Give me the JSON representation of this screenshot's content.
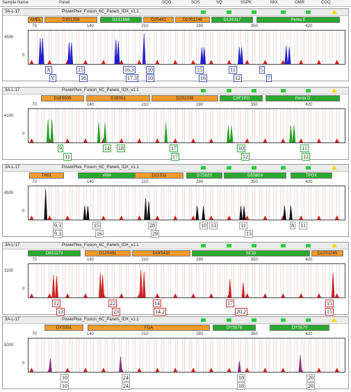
{
  "header": {
    "sample_name": "Sample Name",
    "panel": "Panel",
    "cols": [
      "SQO",
      "SOS",
      "SQ",
      "SSPK",
      "MIX",
      "OMR",
      "CGQ"
    ]
  },
  "panels": [
    {
      "sample": "3A-L-17",
      "panel_name": "PowerPlex_Fusion_6C_Panels_IDX_v1.1",
      "ymax": 4500,
      "ytick": "4500",
      "color": "#2222cc",
      "loci": [
        {
          "name": "AMEL",
          "c": "orange"
        },
        {
          "name": "D3S1358",
          "c": "orange"
        },
        {
          "name": "D1S1656",
          "c": "green"
        },
        {
          "name": "D2S441",
          "c": "orange"
        },
        {
          "name": "D10S1248",
          "c": "orange"
        },
        {
          "name": "D13S317",
          "c": "green"
        },
        {
          "name": "Penta E",
          "c": "green"
        }
      ],
      "alleles_top": [
        "X",
        "15",
        "16.3",
        "10",
        "15",
        "11",
        "5"
      ],
      "alleles_bot": [
        "Y",
        "16",
        "17.3",
        "10",
        "16",
        "12",
        "7"
      ],
      "peaks": [
        {
          "bp": 75,
          "h": 0.85
        },
        {
          "bp": 78,
          "h": 0.85
        },
        {
          "bp": 112,
          "h": 0.7
        },
        {
          "bp": 115,
          "h": 0.7
        },
        {
          "bp": 172,
          "h": 0.8
        },
        {
          "bp": 175,
          "h": 0.75
        },
        {
          "bp": 208,
          "h": 1.0
        },
        {
          "bp": 282,
          "h": 0.55
        },
        {
          "bp": 285,
          "h": 0.55
        },
        {
          "bp": 330,
          "h": 0.55
        },
        {
          "bp": 333,
          "h": 0.55
        },
        {
          "bp": 390,
          "h": 0.6
        },
        {
          "bp": 394,
          "h": 0.55
        }
      ]
    },
    {
      "sample": "3A-L-17",
      "panel_name": "PowerPlex_Fusion_6C_Panels_IDX_v1.1",
      "ymax": 4100,
      "ytick": "4100",
      "color": "#22a022",
      "loci": [
        {
          "name": "D16S539",
          "c": "orange"
        },
        {
          "name": "D18S51",
          "c": "orange"
        },
        {
          "name": "D2S1338",
          "c": "orange"
        },
        {
          "name": "CSF1PO",
          "c": "green"
        },
        {
          "name": "Penta D",
          "c": "green"
        }
      ],
      "alleles_top": [
        "9",
        "14",
        "18",
        "17",
        "10",
        "11"
      ],
      "alleles_bot": [
        "11",
        "17",
        "12",
        "12"
      ],
      "peaks": [
        {
          "bp": 85,
          "h": 0.75
        },
        {
          "bp": 90,
          "h": 0.75
        },
        {
          "bp": 150,
          "h": 0.65
        },
        {
          "bp": 158,
          "h": 0.65
        },
        {
          "bp": 236,
          "h": 0.65
        },
        {
          "bp": 316,
          "h": 0.55
        },
        {
          "bp": 320,
          "h": 0.55
        },
        {
          "bp": 396,
          "h": 0.55
        },
        {
          "bp": 400,
          "h": 0.55
        }
      ]
    },
    {
      "sample": "3A-L-17",
      "panel_name": "PowerPlex_Fusion_6C_Panels_IDX_v1.1",
      "ymax": 4500,
      "ytick": "4500",
      "color": "#111111",
      "loci": [
        {
          "name": "TH01",
          "c": "orange"
        },
        {
          "name": "vWA",
          "c": "green"
        },
        {
          "name": "D21S11",
          "c": "orange"
        },
        {
          "name": "D7S820",
          "c": "green"
        },
        {
          "name": "D5S818",
          "c": "green"
        },
        {
          "name": "TPOX",
          "c": "green"
        }
      ],
      "alleles_top": [
        "9.3",
        "15",
        "28",
        "10",
        "13",
        "11",
        "8",
        "11"
      ],
      "alleles_bot": [
        "9.3",
        "16",
        "29",
        "13"
      ],
      "peaks": [
        {
          "bp": 82,
          "h": 1.0
        },
        {
          "bp": 132,
          "h": 0.45
        },
        {
          "bp": 136,
          "h": 0.45
        },
        {
          "bp": 210,
          "h": 0.7
        },
        {
          "bp": 214,
          "h": 0.6
        },
        {
          "bp": 276,
          "h": 0.45
        },
        {
          "bp": 284,
          "h": 0.45
        },
        {
          "bp": 332,
          "h": 0.45
        },
        {
          "bp": 336,
          "h": 0.45
        },
        {
          "bp": 388,
          "h": 0.45
        },
        {
          "bp": 396,
          "h": 0.45
        }
      ]
    },
    {
      "sample": "3A-L-17",
      "panel_name": "PowerPlex_Fusion_6C_Panels_IDX_v1.1",
      "ymax": 3200,
      "ytick": "3200",
      "color": "#cc2222",
      "loci": [
        {
          "name": "D8S1179",
          "c": "green"
        },
        {
          "name": "D12S391",
          "c": "orange"
        },
        {
          "name": "D19S433",
          "c": "orange"
        },
        {
          "name": "SE33",
          "c": "green"
        },
        {
          "name": "D22S1045",
          "c": "orange"
        }
      ],
      "alleles_top": [
        "12",
        "22",
        "14",
        "17",
        "15"
      ],
      "alleles_bot": [
        "13",
        "23",
        "14.2",
        "20.2",
        "15"
      ],
      "peaks": [
        {
          "bp": 92,
          "h": 0.75
        },
        {
          "bp": 96,
          "h": 0.7
        },
        {
          "bp": 152,
          "h": 0.8
        },
        {
          "bp": 155,
          "h": 0.75
        },
        {
          "bp": 204,
          "h": 0.9
        },
        {
          "bp": 208,
          "h": 0.85
        },
        {
          "bp": 318,
          "h": 0.6
        },
        {
          "bp": 335,
          "h": 0.5
        },
        {
          "bp": 450,
          "h": 0.8
        }
      ]
    },
    {
      "sample": "3A-L-17",
      "panel_name": "PowerPlex_Fusion_6C_Panels_IDX_v1.1",
      "ymax": 5000,
      "ytick": "5000",
      "color": "#8a2a8a",
      "loci": [
        {
          "name": "DYS391",
          "c": "orange"
        },
        {
          "name": "FGA",
          "c": "orange"
        },
        {
          "name": "DYS576",
          "c": "green"
        },
        {
          "name": "DYS570",
          "c": "green"
        }
      ],
      "alleles_top": [
        "10",
        "24",
        "18",
        "20"
      ],
      "alleles_bot": [
        "10",
        "24",
        "18",
        "20"
      ],
      "peaks": [
        {
          "bp": 88,
          "h": 0.45
        },
        {
          "bp": 178,
          "h": 0.5
        },
        {
          "bp": 330,
          "h": 0.35
        },
        {
          "bp": 408,
          "h": 0.55
        }
      ]
    }
  ],
  "ruler_ticks": [
    "70",
    "140",
    "210",
    "280",
    "350",
    "420"
  ]
}
